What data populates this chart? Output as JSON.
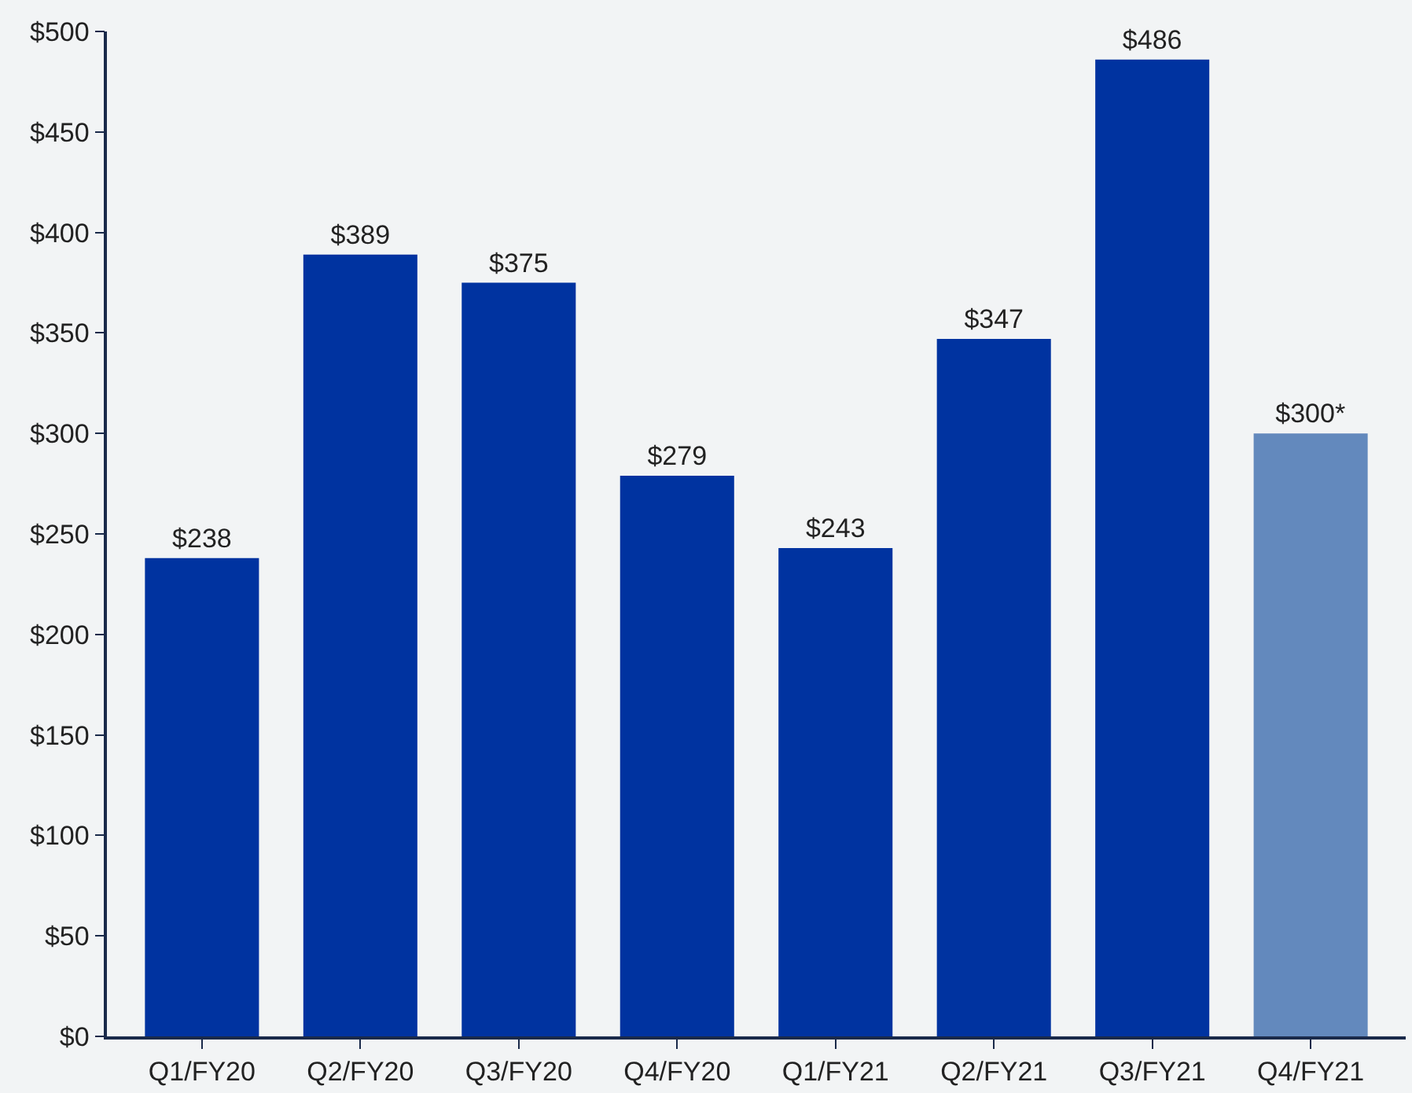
{
  "chart_data": {
    "type": "bar",
    "categories": [
      "Q1/FY20",
      "Q2/FY20",
      "Q3/FY20",
      "Q4/FY20",
      "Q1/FY21",
      "Q2/FY21",
      "Q3/FY21",
      "Q4/FY21"
    ],
    "values": [
      238,
      389,
      375,
      279,
      243,
      347,
      486,
      300
    ],
    "colors": [
      "#0033a0",
      "#0033a0",
      "#0033a0",
      "#0033a0",
      "#0033a0",
      "#0033a0",
      "#0033a0",
      "#6389bd"
    ],
    "value_labels": [
      "$238",
      "$389",
      "$375",
      "$279",
      "$243",
      "$347",
      "$486",
      "$300*"
    ],
    "ylim": [
      0,
      500
    ],
    "yticks": [
      {
        "value": 0,
        "label": "$0"
      },
      {
        "value": 50,
        "label": "$50"
      },
      {
        "value": 100,
        "label": "$100"
      },
      {
        "value": 150,
        "label": "$150"
      },
      {
        "value": 200,
        "label": "$200"
      },
      {
        "value": 250,
        "label": "$250"
      },
      {
        "value": 300,
        "label": "$300"
      },
      {
        "value": 350,
        "label": "$350"
      },
      {
        "value": 400,
        "label": "$400"
      },
      {
        "value": 450,
        "label": "$450"
      },
      {
        "value": 500,
        "label": "$500"
      }
    ],
    "grid": false
  }
}
